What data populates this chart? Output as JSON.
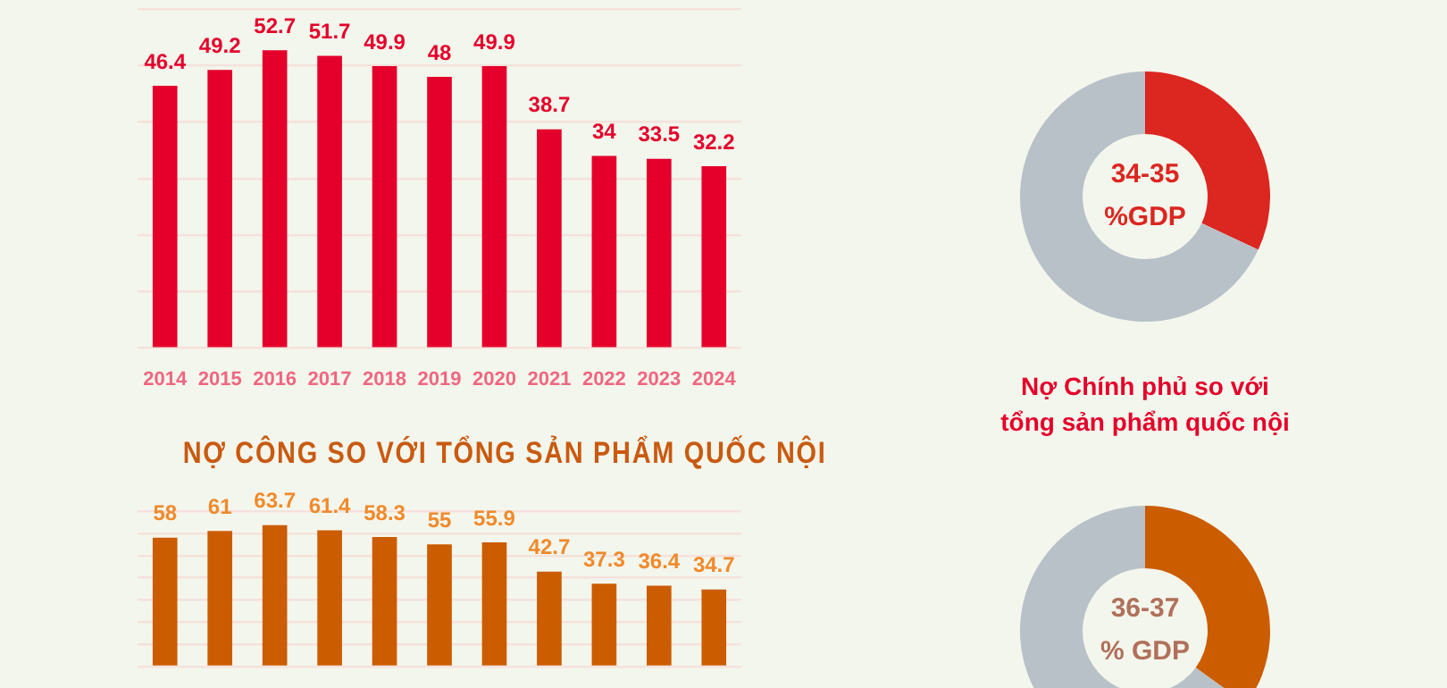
{
  "chart_data": [
    {
      "type": "bar",
      "categories": [
        "2014",
        "2015",
        "2016",
        "2017",
        "2018",
        "2019",
        "2020",
        "2021",
        "2022",
        "2023",
        "2024"
      ],
      "values": [
        46.4,
        49.2,
        52.7,
        51.7,
        49.9,
        48,
        49.9,
        38.7,
        34,
        33.5,
        32.2
      ],
      "color": "#e4002b",
      "ylim": [
        0,
        60
      ],
      "yticks": [
        0,
        10,
        20,
        30,
        40,
        50,
        60
      ],
      "grid": "y",
      "tick_labels": "x",
      "data_labels": true
    },
    {
      "type": "bar",
      "title": "NỢ CÔNG SO VỚI TỔNG SẢN PHẨM QUỐC NỘI",
      "categories": [
        null,
        null,
        null,
        null,
        null,
        null,
        null,
        null,
        null,
        null,
        null
      ],
      "values": [
        58,
        61,
        63.7,
        61.4,
        58.3,
        55,
        55.9,
        42.7,
        37.3,
        36.4,
        34.7
      ],
      "color": "#cc5c00",
      "ylim": [
        0,
        70
      ],
      "yticks": [
        0,
        10,
        20,
        30,
        40,
        50,
        60,
        70
      ],
      "grid": "y",
      "tick_labels": false,
      "data_labels": true
    },
    {
      "type": "donut",
      "categories": [
        null,
        null
      ],
      "values": [
        32,
        68
      ],
      "colors": [
        "#dc2620",
        "#b8c0c8"
      ],
      "annotations": [
        "34-35",
        "%GDP",
        "Nợ Chính phủ so với tổng sản phẩm quốc nội"
      ]
    },
    {
      "type": "donut",
      "categories": [
        null,
        null
      ],
      "values": [
        35,
        65
      ],
      "colors": [
        "#cc5c00",
        "#b8c0c8"
      ],
      "annotations": [
        "36-37",
        "% GDP"
      ]
    }
  ]
}
